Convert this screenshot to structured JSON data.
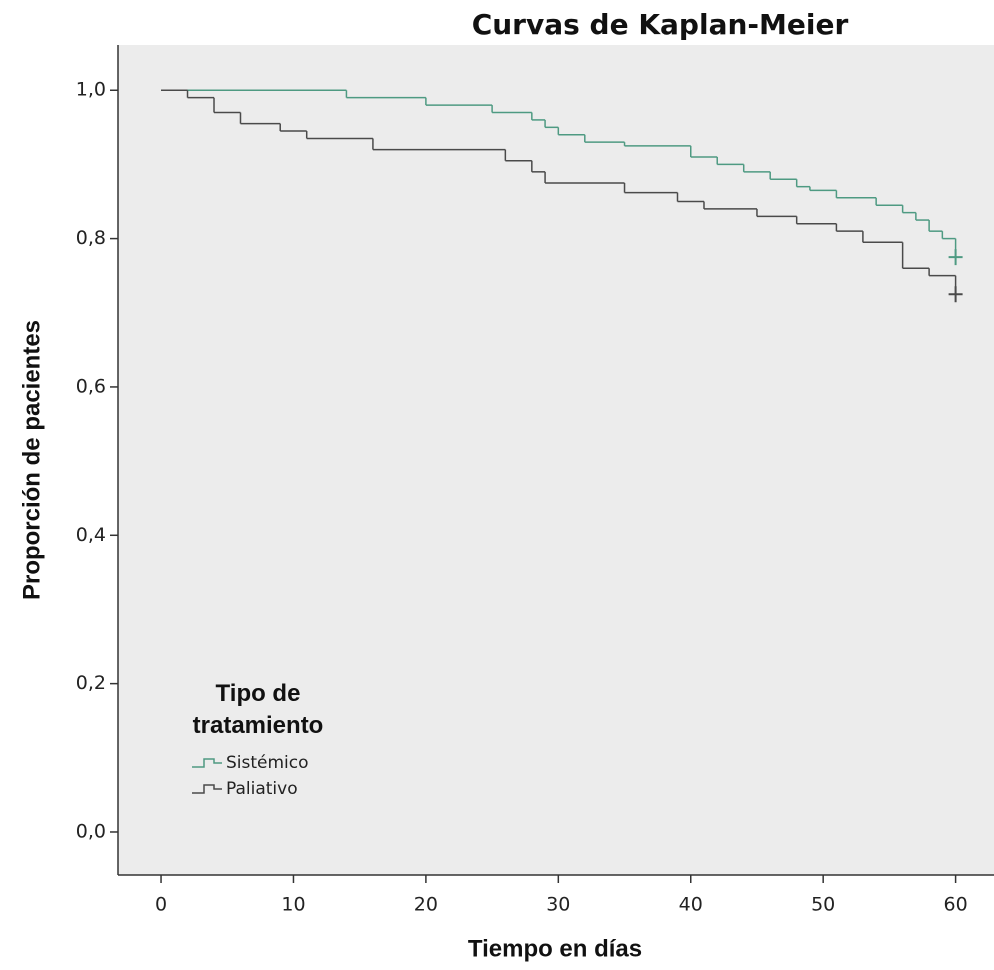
{
  "chart_data": {
    "type": "step",
    "title": "Curvas de Kaplan-Meier",
    "x_label": "Tiempo en días",
    "y_label": "Proporción de pacientes",
    "legend_title": "Tipo de tratamiento",
    "legend_position": "lower left",
    "xlim": [
      -3.25,
      62.9
    ],
    "ylim": [
      -0.058,
      1.061
    ],
    "xticks": [
      0,
      10,
      20,
      30,
      40,
      50,
      60
    ],
    "yticks": [
      {
        "value": 0,
        "label": "0,0"
      },
      {
        "value": 0.2,
        "label": "0,2"
      },
      {
        "value": 0.4,
        "label": "0,4"
      },
      {
        "value": 0.6,
        "label": "0,6"
      },
      {
        "value": 0.8,
        "label": "0,8"
      },
      {
        "value": 1,
        "label": "1,0"
      }
    ],
    "series": [
      {
        "name": "Sistémico",
        "color": "#4e9a82",
        "x": [
          0,
          14,
          20,
          25,
          28,
          29,
          30,
          32,
          35,
          40,
          42,
          44,
          46,
          48,
          49,
          51,
          54,
          56,
          57,
          58,
          59,
          60
        ],
        "values": [
          1,
          0.99,
          0.98,
          0.97,
          0.96,
          0.95,
          0.94,
          0.93,
          0.925,
          0.91,
          0.9,
          0.89,
          0.88,
          0.87,
          0.865,
          0.855,
          0.845,
          0.835,
          0.825,
          0.81,
          0.8,
          0.775
        ]
      },
      {
        "name": "Paliativo",
        "color": "#4a4a4a",
        "x": [
          0,
          2,
          4,
          6,
          9,
          11,
          16,
          26,
          28,
          29,
          35,
          39,
          41,
          45,
          48,
          51,
          53,
          56,
          58,
          60
        ],
        "values": [
          1,
          0.99,
          0.97,
          0.955,
          0.945,
          0.935,
          0.92,
          0.905,
          0.89,
          0.875,
          0.862,
          0.85,
          0.84,
          0.83,
          0.82,
          0.81,
          0.795,
          0.76,
          0.75,
          0.725
        ]
      }
    ]
  }
}
